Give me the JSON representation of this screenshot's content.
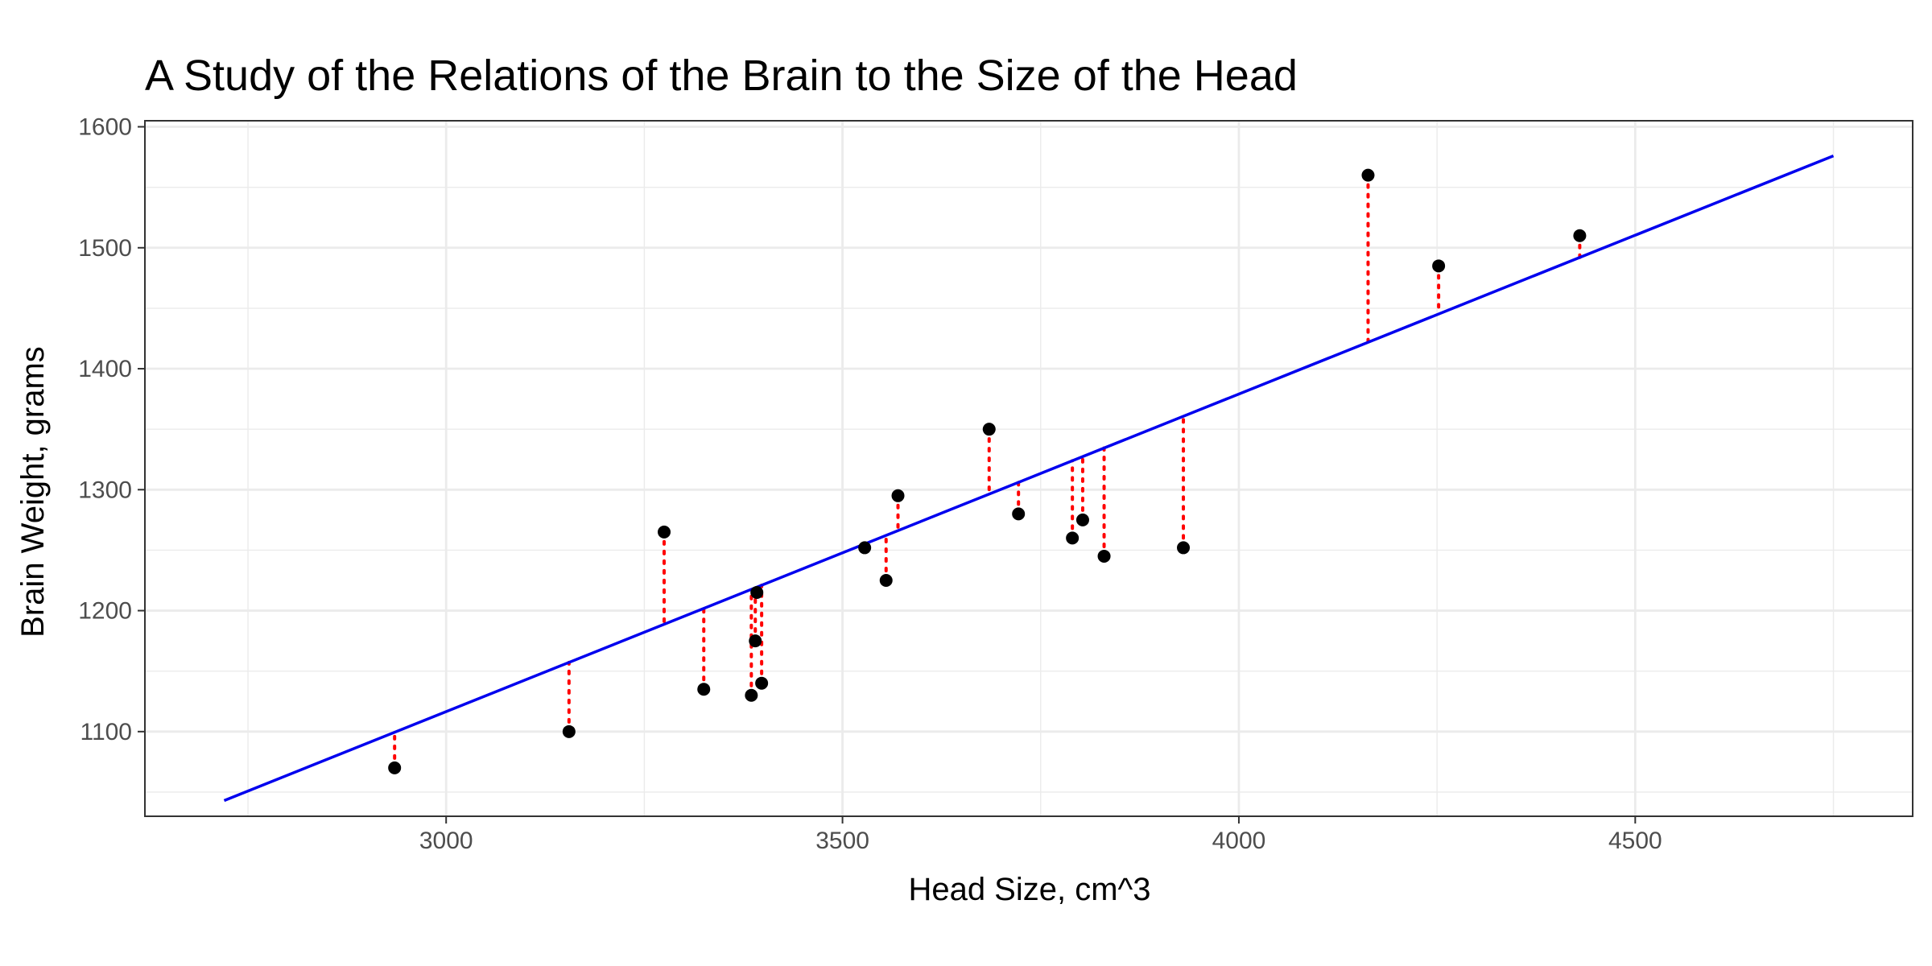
{
  "chart_data": {
    "type": "scatter",
    "title": "A Study of the Relations of the Brain to the Size of the Head",
    "xlabel": "Head Size, cm^3",
    "ylabel": "Brain Weight, grams",
    "xlim": [
      2620,
      4850
    ],
    "ylim": [
      1030,
      1605
    ],
    "x_ticks": [
      3000,
      3500,
      4000,
      4500
    ],
    "y_ticks": [
      1100,
      1200,
      1300,
      1400,
      1500,
      1600
    ],
    "grid": true,
    "points": [
      {
        "x": 2935,
        "y": 1070
      },
      {
        "x": 3155,
        "y": 1100
      },
      {
        "x": 3275,
        "y": 1265
      },
      {
        "x": 3325,
        "y": 1135
      },
      {
        "x": 3385,
        "y": 1130
      },
      {
        "x": 3390,
        "y": 1175
      },
      {
        "x": 3392,
        "y": 1215
      },
      {
        "x": 3398,
        "y": 1140
      },
      {
        "x": 3528,
        "y": 1252
      },
      {
        "x": 3555,
        "y": 1225
      },
      {
        "x": 3570,
        "y": 1295
      },
      {
        "x": 3685,
        "y": 1350
      },
      {
        "x": 3722,
        "y": 1280
      },
      {
        "x": 3790,
        "y": 1260
      },
      {
        "x": 3803,
        "y": 1275
      },
      {
        "x": 3830,
        "y": 1245
      },
      {
        "x": 3930,
        "y": 1252
      },
      {
        "x": 4163,
        "y": 1560
      },
      {
        "x": 4252,
        "y": 1485
      },
      {
        "x": 4430,
        "y": 1510
      }
    ],
    "fit_line": {
      "x_start": 2720,
      "y_start": 1043,
      "x_end": 4750,
      "y_end": 1576
    },
    "colors": {
      "points": "#000000",
      "fit_line": "#0000ee",
      "residuals": "#ff0000"
    }
  }
}
